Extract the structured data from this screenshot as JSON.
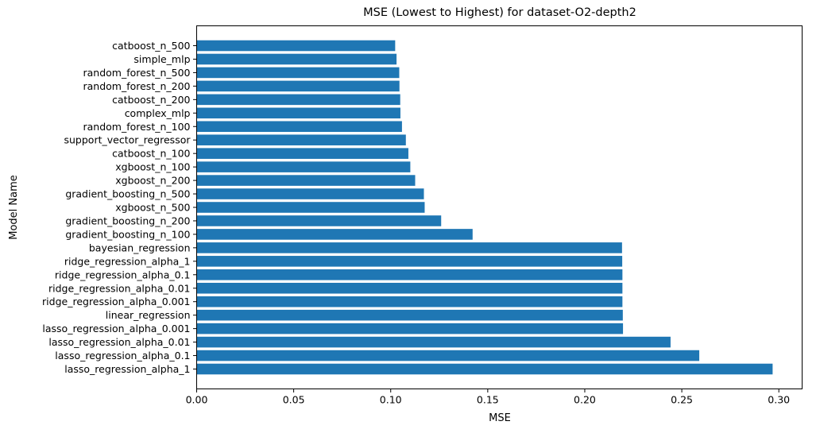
{
  "chart_data": {
    "type": "bar",
    "orientation": "horizontal",
    "title": "MSE (Lowest to Highest) for dataset-O2-depth2",
    "xlabel": "MSE",
    "ylabel": "Model Name",
    "xlim": [
      0,
      0.312
    ],
    "xticks": [
      "0.00",
      "0.05",
      "0.10",
      "0.15",
      "0.20",
      "0.25",
      "0.30"
    ],
    "bar_color": "#1f77b4",
    "grid": false,
    "categories": [
      "catboost_n_500",
      "simple_mlp",
      "random_forest_n_500",
      "random_forest_n_200",
      "catboost_n_200",
      "complex_mlp",
      "random_forest_n_100",
      "support_vector_regressor",
      "catboost_n_100",
      "xgboost_n_100",
      "xgboost_n_200",
      "gradient_boosting_n_500",
      "xgboost_n_500",
      "gradient_boosting_n_200",
      "gradient_boosting_n_100",
      "bayesian_regression",
      "ridge_regression_alpha_1",
      "ridge_regression_alpha_0.1",
      "ridge_regression_alpha_0.01",
      "ridge_regression_alpha_0.001",
      "linear_regression",
      "lasso_regression_alpha_0.001",
      "lasso_regression_alpha_0.01",
      "lasso_regression_alpha_0.1",
      "lasso_regression_alpha_1"
    ],
    "values": [
      0.1023,
      0.103,
      0.1044,
      0.1045,
      0.1049,
      0.105,
      0.1058,
      0.1078,
      0.1091,
      0.1101,
      0.1126,
      0.1171,
      0.1175,
      0.126,
      0.1422,
      0.2192,
      0.2193,
      0.2194,
      0.2194,
      0.2194,
      0.2196,
      0.2197,
      0.2442,
      0.259,
      0.2968
    ]
  }
}
